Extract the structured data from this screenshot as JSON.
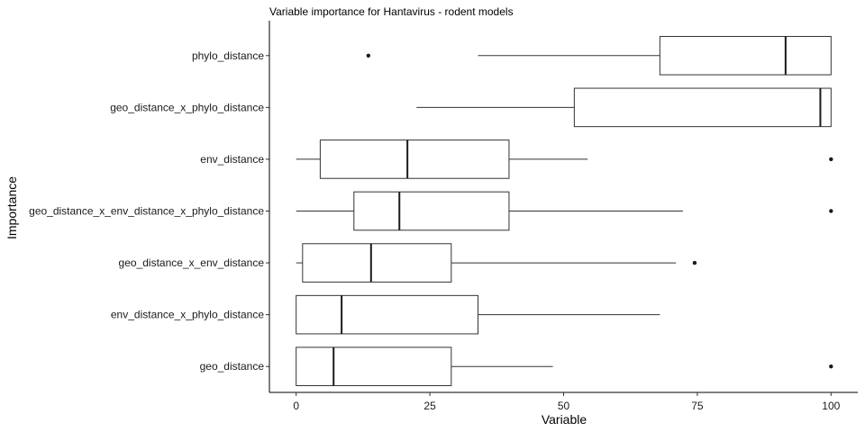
{
  "chart_data": {
    "type": "boxplot",
    "title": "Variable importance for Hantavirus - rodent models",
    "xlabel": "Variable",
    "ylabel": "Importance",
    "xlim": [
      -5,
      105
    ],
    "xticks": [
      0,
      25,
      50,
      75,
      100
    ],
    "grid": false,
    "legend": "none",
    "orientation": "horizontal",
    "categories": [
      "phylo_distance",
      "geo_distance_x_phylo_distance",
      "env_distance",
      "geo_distance_x_env_distance_x_phylo_distance",
      "geo_distance_x_env_distance",
      "env_distance_x_phylo_distance",
      "geo_distance"
    ],
    "boxes": [
      {
        "min": 34,
        "q1": 68,
        "median": 91.5,
        "q3": 100,
        "max": 100,
        "outliers": [
          13.5
        ]
      },
      {
        "min": 22.5,
        "q1": 52,
        "median": 98,
        "q3": 100,
        "max": 100,
        "outliers": []
      },
      {
        "min": 0,
        "q1": 4.5,
        "median": 20.8,
        "q3": 39.8,
        "max": 54.5,
        "outliers": [
          100
        ]
      },
      {
        "min": 0,
        "q1": 10.8,
        "median": 19.3,
        "q3": 39.8,
        "max": 72.3,
        "outliers": [
          100
        ]
      },
      {
        "min": 0,
        "q1": 1.2,
        "median": 14,
        "q3": 29,
        "max": 71,
        "outliers": [
          74.5
        ]
      },
      {
        "min": 0,
        "q1": 0,
        "median": 8.5,
        "q3": 34,
        "max": 68,
        "outliers": []
      },
      {
        "min": 0,
        "q1": 0,
        "median": 7,
        "q3": 29,
        "max": 48,
        "outliers": [
          100
        ]
      }
    ]
  }
}
